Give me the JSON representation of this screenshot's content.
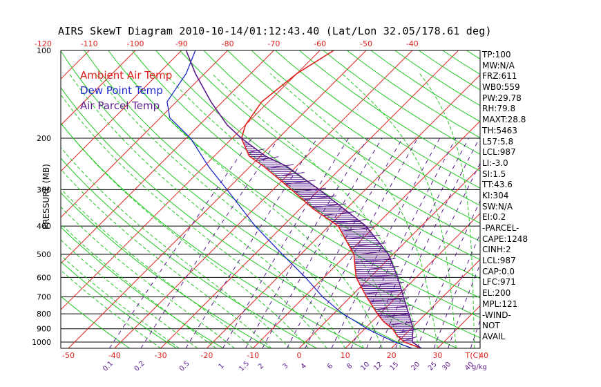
{
  "title": "AIRS SkewT Diagram 2010-10-14/01:12:43.40 (Lat/Lon 32.05/178.61 deg)",
  "legend": [
    {
      "label": "Ambient Air Temp",
      "color": "#e0201e"
    },
    {
      "label": "Dew Point Temp",
      "color": "#1f28c8"
    },
    {
      "label": "Air Parcel Temp",
      "color": "#5a1a8a"
    }
  ],
  "stats": [
    "TP:100",
    "MW:N/A",
    "FRZ:611",
    "WB0:559",
    "PW:29.78",
    "RH:79.8",
    "MAXT:28.8",
    "TH:5463",
    "L57:5.8",
    "LCL:987",
    "LI:-3.0",
    "SI:1.5",
    "TT:43.6",
    "KI:304",
    "SW:N/A",
    "EI:0.2",
    "-PARCEL-",
    "CAPE:1248",
    "CINH:2",
    "LCL:987",
    "CAP:0.0",
    "LFC:971",
    "EL:200",
    "MPL:121",
    "-WIND-",
    "NOT",
    "AVAIL"
  ],
  "colors": {
    "isotherm": "#e0201e",
    "dry_adiabat": "#22c822",
    "moist_adiabat": "#22c822",
    "mixing_ratio": "#5a1a8a",
    "hatch": "#5a1a8a",
    "axis_text": "#e0201e",
    "mixing_text": "#5a1a8a"
  },
  "chart_data": {
    "type": "line",
    "title": "AIRS SkewT Diagram 2010-10-14/01:12:43.40 (Lat/Lon 32.05/178.61 deg)",
    "ylabel": "PRESSURE (MB)",
    "pressure_ticks": [
      100,
      200,
      300,
      400,
      500,
      600,
      700,
      800,
      900,
      1000
    ],
    "pressure_range": [
      100,
      1050
    ],
    "bottom_temp_ticks": [
      -50,
      -40,
      -30,
      -20,
      -10,
      0,
      10,
      20,
      30,
      40
    ],
    "bottom_axis_label": "T(C)",
    "top_temp_ticks": [
      -120,
      -110,
      -100,
      -90,
      -80,
      -70,
      -60,
      -50,
      -40
    ],
    "mixing_ratio_labels": [
      "0.1",
      "0.2",
      "0.5",
      "1",
      "1.5",
      "2",
      "3",
      "4",
      "6",
      "8",
      "10",
      "12",
      "15",
      "20",
      "25",
      "30",
      "40"
    ],
    "mixing_ratio_unit_label": "g/kg",
    "series": [
      {
        "name": "Ambient Air Temp",
        "points": [
          [
            1050,
            26.5
          ],
          [
            1000,
            21.5
          ],
          [
            950,
            18.5
          ],
          [
            900,
            16
          ],
          [
            850,
            12.5
          ],
          [
            800,
            9.5
          ],
          [
            700,
            3.5
          ],
          [
            600,
            -3
          ],
          [
            500,
            -8.5
          ],
          [
            400,
            -18
          ],
          [
            350,
            -27
          ],
          [
            300,
            -36
          ],
          [
            250,
            -47
          ],
          [
            230,
            -52.5
          ],
          [
            200,
            -58
          ],
          [
            180,
            -60
          ],
          [
            150,
            -61.5
          ],
          [
            120,
            -60
          ],
          [
            100,
            -57
          ]
        ]
      },
      {
        "name": "Dew Point Temp",
        "points": [
          [
            1050,
            24.5
          ],
          [
            1000,
            19.5
          ],
          [
            950,
            15
          ],
          [
            900,
            10.5
          ],
          [
            850,
            6.5
          ],
          [
            800,
            2
          ],
          [
            700,
            -6
          ],
          [
            600,
            -14
          ],
          [
            500,
            -24
          ],
          [
            400,
            -36
          ],
          [
            300,
            -50
          ],
          [
            250,
            -59
          ],
          [
            200,
            -69
          ],
          [
            170,
            -78
          ],
          [
            150,
            -82
          ],
          [
            120,
            -84
          ],
          [
            100,
            -87
          ]
        ]
      },
      {
        "name": "Air Parcel Temp",
        "points": [
          [
            1050,
            26.5
          ],
          [
            1000,
            23.2
          ],
          [
            950,
            21.8
          ],
          [
            900,
            20.5
          ],
          [
            850,
            18.5
          ],
          [
            800,
            16.3
          ],
          [
            700,
            11.5
          ],
          [
            600,
            6
          ],
          [
            500,
            -1
          ],
          [
            400,
            -12
          ],
          [
            300,
            -30
          ],
          [
            250,
            -42
          ],
          [
            230,
            -49
          ],
          [
            200,
            -58
          ],
          [
            180,
            -64
          ],
          [
            150,
            -72.5
          ],
          [
            120,
            -82
          ],
          [
            100,
            -89
          ]
        ]
      }
    ]
  }
}
